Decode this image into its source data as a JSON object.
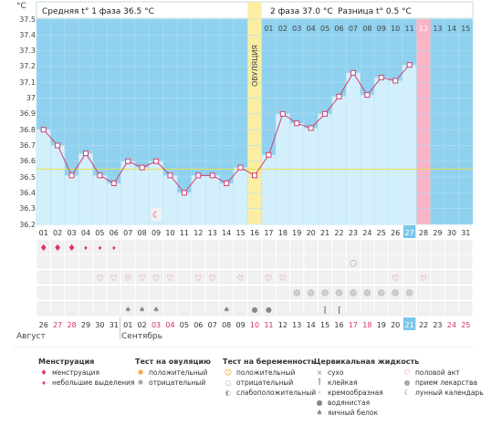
{
  "header": {
    "unit": "°C",
    "phase1_text": "Средняя t° 1 фаза 36.5 °C",
    "phase2_text": "2 фаза 37.0 °C",
    "diff_text": "Разница t° 0.5 °C",
    "ovulation_label": "ОВУЛЯЦИЯ"
  },
  "chart_data": {
    "type": "line",
    "title": "",
    "xlabel": "",
    "ylabel": "°C",
    "ylim": [
      36.2,
      37.5
    ],
    "yticks": [
      "37.5",
      "37.4",
      "37.3",
      "37.2",
      "37.1",
      "37",
      "36.9",
      "36.8",
      "36.7",
      "36.6",
      "36.5",
      "36.4",
      "36.3",
      "36.2"
    ],
    "cycle_days": [
      "01",
      "02",
      "03",
      "04",
      "05",
      "06",
      "07",
      "08",
      "09",
      "10",
      "11",
      "12",
      "13",
      "14",
      "15",
      "16",
      "17",
      "18",
      "19",
      "20",
      "21",
      "22",
      "23",
      "24",
      "25",
      "26",
      "27",
      "28",
      "29",
      "30",
      "31"
    ],
    "phase2_day_labels": [
      "01",
      "02",
      "03",
      "04",
      "05",
      "06",
      "07",
      "08",
      "09",
      "10",
      "11",
      "12",
      "13",
      "14",
      "15"
    ],
    "temperatures": [
      36.8,
      36.7,
      36.51,
      36.65,
      36.51,
      36.46,
      36.6,
      36.56,
      36.6,
      36.51,
      36.4,
      36.51,
      36.51,
      36.46,
      36.56,
      36.51,
      36.64,
      36.9,
      36.84,
      36.81,
      36.9,
      37.01,
      37.16,
      37.02,
      37.13,
      37.11,
      37.21
    ],
    "coverline": 36.55,
    "ovulation_day": "16",
    "current_day": "27",
    "period_day": "28",
    "grid": true
  },
  "calendar": {
    "dates": [
      "26",
      "27",
      "28",
      "29",
      "30",
      "31",
      "01",
      "02",
      "03",
      "04",
      "05",
      "06",
      "07",
      "08",
      "09",
      "10",
      "11",
      "12",
      "13",
      "14",
      "15",
      "16",
      "17",
      "18",
      "19",
      "20",
      "21",
      "22",
      "23",
      "24",
      "25"
    ],
    "red_dates": [
      "27",
      "28",
      "03",
      "04",
      "10",
      "11",
      "17",
      "18",
      "24",
      "25"
    ],
    "month_start": "Август",
    "month_next": "Сентябрь"
  },
  "rows": {
    "menstruation": {
      "heavy": [
        0,
        1,
        2
      ],
      "light": [
        3,
        4,
        5
      ]
    },
    "pregnancy_test": [
      22
    ],
    "intercourse": [
      4,
      5,
      6,
      7,
      8,
      9,
      11,
      12,
      14,
      16,
      17,
      25,
      27
    ],
    "medicine": [
      18,
      19,
      20,
      21,
      22,
      23,
      24,
      25,
      26
    ],
    "moon": [
      8
    ],
    "cervical": {
      "sticky": [
        20,
        21
      ],
      "egg_white": [
        6,
        7,
        8,
        13
      ],
      "watery": [
        15,
        16
      ]
    }
  },
  "legend": {
    "menstruation": {
      "title": "Менструация",
      "items": [
        "менструация",
        "небольшие выделения"
      ]
    },
    "ovulation_test": {
      "title": "Тест на овуляцию",
      "items": [
        "положительный",
        "отрицательный"
      ]
    },
    "pregnancy_test": {
      "title": "Тест на беременность",
      "items": [
        "положительный",
        "отрицательный",
        "слабоположительный"
      ]
    },
    "cervical": {
      "title": "Цервикальная жидкость",
      "items": [
        "сухо",
        "клейкая",
        "кремообразная",
        "водянистая",
        "яичный белок"
      ]
    },
    "other": {
      "items": [
        "половой акт",
        "прием лекарства",
        "лунный календарь"
      ]
    }
  },
  "colors": {
    "blue": "#8fd1ee",
    "light_blue": "#d4effc",
    "ovulation": "#fbeea2",
    "period": "#f9b4c6",
    "line": "#d04070",
    "coverline": "#e6e24a"
  }
}
